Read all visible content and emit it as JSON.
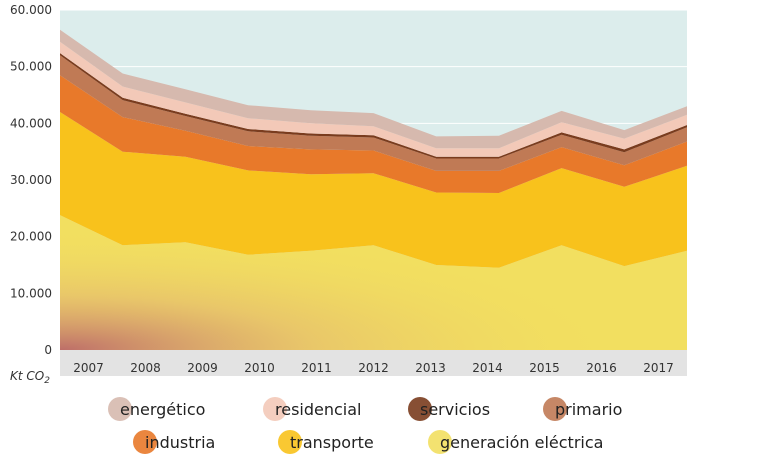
{
  "chart_data": {
    "type": "area",
    "stacked": true,
    "x": [
      "2007",
      "2008",
      "2009",
      "2010",
      "2011",
      "2012",
      "2013",
      "2014",
      "2015",
      "2016",
      "2017"
    ],
    "ylim": [
      0,
      60000
    ],
    "yticks": [
      0,
      10000,
      20000,
      30000,
      40000,
      50000,
      60000
    ],
    "ytick_labels": [
      "0",
      "10.000",
      "20.000",
      "30.000",
      "40.000",
      "50.000",
      "60.000"
    ],
    "unit_main": "Kt CO",
    "unit_sub": "2",
    "grid": true,
    "legend_position": "bottom",
    "series": [
      {
        "name": "generación eléctrica",
        "color": "#f2df60",
        "values": [
          23800,
          18500,
          19000,
          16800,
          17500,
          18500,
          15000,
          14500,
          18500,
          14800,
          17500
        ]
      },
      {
        "name": "transporte",
        "color": "#f8c21c",
        "values": [
          18200,
          16500,
          15100,
          14900,
          13500,
          12700,
          12800,
          13200,
          13600,
          14000,
          15000
        ]
      },
      {
        "name": "industria",
        "color": "#e8792a",
        "values": [
          6500,
          6100,
          4600,
          4300,
          4400,
          4000,
          3800,
          3900,
          3700,
          3800,
          4300
        ]
      },
      {
        "name": "primario",
        "color": "#c07a55",
        "values": [
          3500,
          3000,
          2600,
          2600,
          2400,
          2300,
          2200,
          2200,
          2200,
          2300,
          2500
        ]
      },
      {
        "name": "servicios",
        "color": "#7a3c1e",
        "values": [
          400,
          400,
          400,
          400,
          400,
          400,
          300,
          300,
          400,
          500,
          400
        ]
      },
      {
        "name": "residencial",
        "color": "#f3c9b8",
        "values": [
          2000,
          2000,
          2000,
          1900,
          1800,
          1600,
          1500,
          1500,
          1800,
          1900,
          1800
        ]
      },
      {
        "name": "energético",
        "color": "#d6b9ae",
        "values": [
          2100,
          2300,
          2300,
          2300,
          2300,
          2300,
          2100,
          2200,
          2000,
          1500,
          1500
        ]
      }
    ],
    "legend_order": [
      "energético",
      "residencial",
      "servicios",
      "primario",
      "industria",
      "transporte",
      "generación eléctrica"
    ]
  }
}
